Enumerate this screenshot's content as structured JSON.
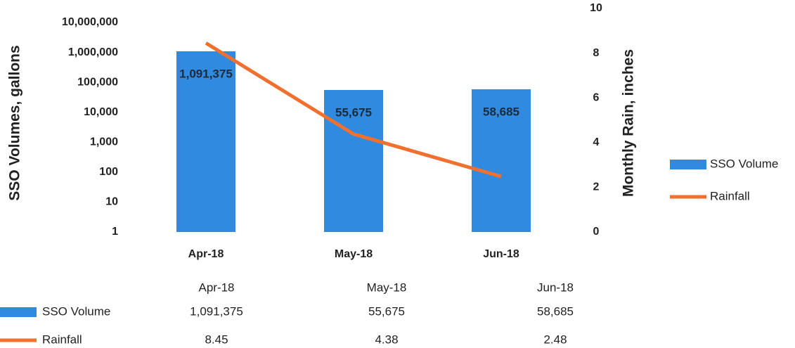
{
  "chart_data": {
    "type": "bar-line",
    "categories": [
      "Apr-18",
      "May-18",
      "Jun-18"
    ],
    "series": [
      {
        "name": "SSO Volume",
        "color": "#2f8ae0",
        "type": "bar",
        "values": [
          1091375,
          55675,
          58685
        ],
        "value_labels": [
          "1,091,375",
          "55,675",
          "58,685"
        ]
      },
      {
        "name": "Rainfall",
        "color": "#f07030",
        "type": "line",
        "axis": "y2",
        "values": [
          8.45,
          4.38,
          2.48
        ]
      }
    ],
    "ylabel": "SSO Volumes, gallons",
    "y2label": "Monthly Rain, inches",
    "ylog": true,
    "ylim": [
      1,
      10000000
    ],
    "yticks": [
      1,
      10,
      100,
      {
        "value": 1000,
        "label": "1,000"
      },
      {
        "value": 10000,
        "label": "10,000"
      },
      {
        "value": 100000,
        "label": "100,000"
      },
      {
        "value": 1000000,
        "label": "1,000,000"
      },
      {
        "value": 10000000,
        "label": "10,000,000"
      }
    ],
    "y2lim": [
      0,
      10
    ],
    "y2ticks": [
      0,
      2,
      4,
      6,
      8,
      10
    ],
    "legend": "right",
    "data_table": true
  }
}
